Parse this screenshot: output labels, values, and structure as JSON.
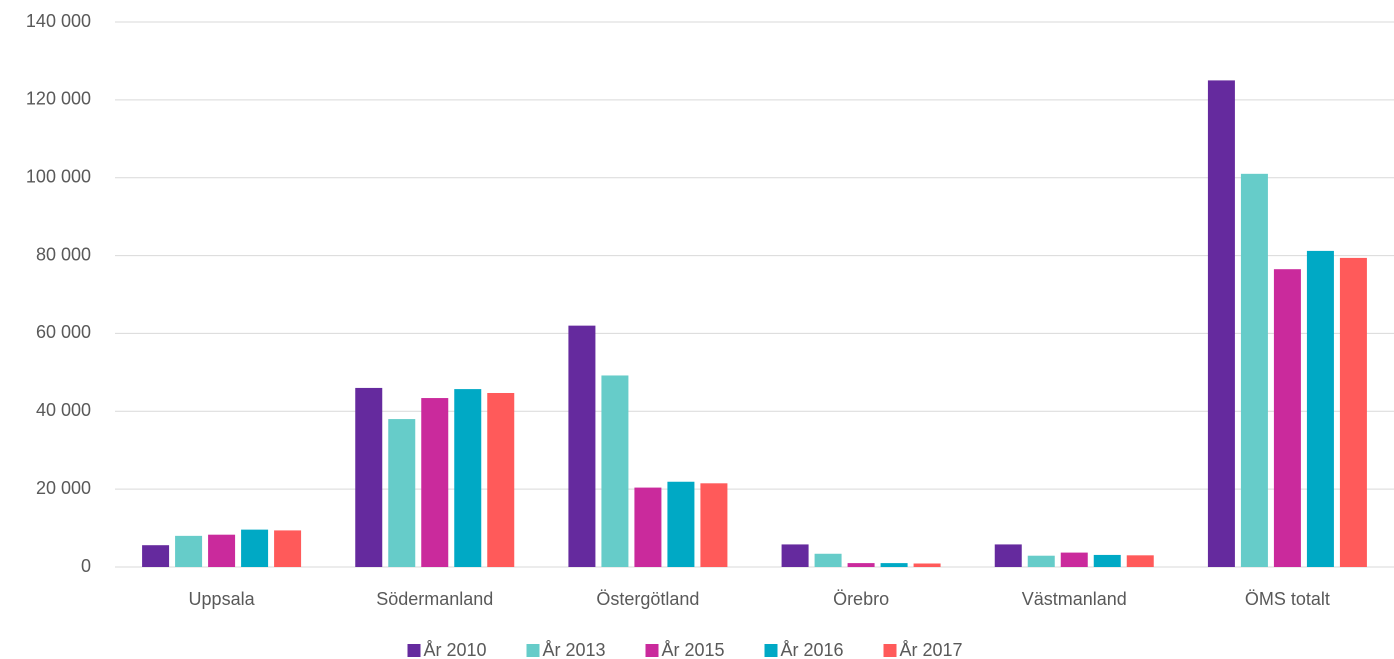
{
  "chart_data": {
    "type": "bar",
    "categories": [
      "Uppsala",
      "Södermanland",
      "Östergötland",
      "Örebro",
      "Västmanland",
      "ÖMS totalt"
    ],
    "series": [
      {
        "name": "År 2010",
        "color": "#652a9e",
        "values": [
          5600,
          46000,
          62000,
          5800,
          5800,
          125000
        ]
      },
      {
        "name": "År 2013",
        "color": "#66ccc9",
        "values": [
          8000,
          38000,
          49200,
          3400,
          2900,
          101000
        ]
      },
      {
        "name": "År 2015",
        "color": "#ca2a9c",
        "values": [
          8300,
          43400,
          20400,
          1000,
          3700,
          76500
        ]
      },
      {
        "name": "År 2016",
        "color": "#00a9c5",
        "values": [
          9600,
          45700,
          21900,
          1000,
          3100,
          81200
        ]
      },
      {
        "name": "År 2017",
        "color": "#ff5a5a",
        "values": [
          9400,
          44700,
          21500,
          900,
          3000,
          79400
        ]
      }
    ],
    "ylim": [
      0,
      140000
    ],
    "yticks": [
      0,
      {
        "value": 20000,
        "label": "20 000"
      },
      {
        "value": 40000,
        "label": "40 000"
      },
      {
        "value": 60000,
        "label": "60 000"
      },
      {
        "value": 80000,
        "label": "80 000"
      },
      {
        "value": 100000,
        "label": "100 000"
      },
      {
        "value": 120000,
        "label": "120 000"
      },
      {
        "value": 140000,
        "label": "140 000"
      }
    ],
    "grid": true,
    "legend": "bottom"
  }
}
